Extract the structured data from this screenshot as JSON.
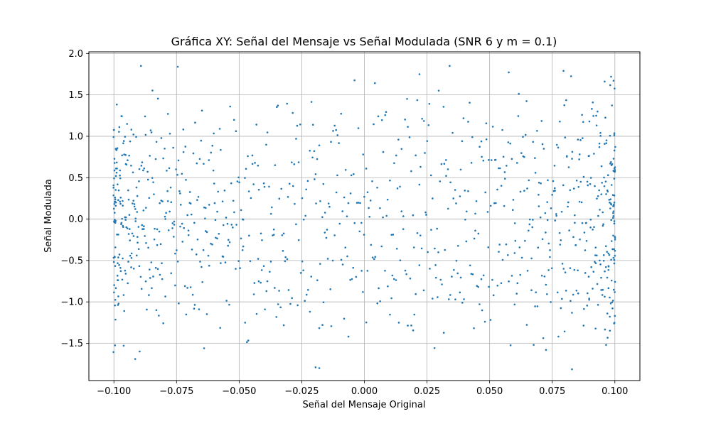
{
  "chart_data": {
    "type": "scatter",
    "title": "Gráfica XY: Señal del Mensaje vs Señal Modulada (SNR 6 y m = 0.1)",
    "xlabel": "Señal del Mensaje Original",
    "ylabel": "Señal Modulada",
    "xlim": [
      -0.11,
      0.11
    ],
    "ylim": [
      -1.95,
      2.02
    ],
    "xticks": [
      -0.1,
      -0.075,
      -0.05,
      -0.025,
      0.0,
      0.025,
      0.05,
      0.075,
      0.1
    ],
    "xtick_labels": [
      "−0.100",
      "−0.075",
      "−0.050",
      "−0.025",
      "0.000",
      "0.025",
      "0.050",
      "0.075",
      "0.100"
    ],
    "yticks": [
      -1.5,
      -1.0,
      -0.5,
      0.0,
      0.5,
      1.0,
      1.5,
      2.0
    ],
    "ytick_labels": [
      "−1.5",
      "−1.0",
      "−0.5",
      "0.0",
      "0.5",
      "1.0",
      "1.5",
      "2.0"
    ],
    "grid": true,
    "marker_color": "#1f77b4",
    "point_count": 1000,
    "notable_points": [
      {
        "x": -0.0745,
        "y": 1.84
      },
      {
        "x": 0.022,
        "y": 1.75
      },
      {
        "x": 0.0795,
        "y": 1.79
      },
      {
        "x": 0.0985,
        "y": 1.72
      },
      {
        "x": -0.0195,
        "y": -1.79
      },
      {
        "x": -0.018,
        "y": -1.8
      },
      {
        "x": -0.0915,
        "y": -1.69
      },
      {
        "x": -0.064,
        "y": -1.56
      },
      {
        "x": 0.0725,
        "y": -1.58
      },
      {
        "x": 0.0965,
        "y": -1.52
      }
    ]
  }
}
